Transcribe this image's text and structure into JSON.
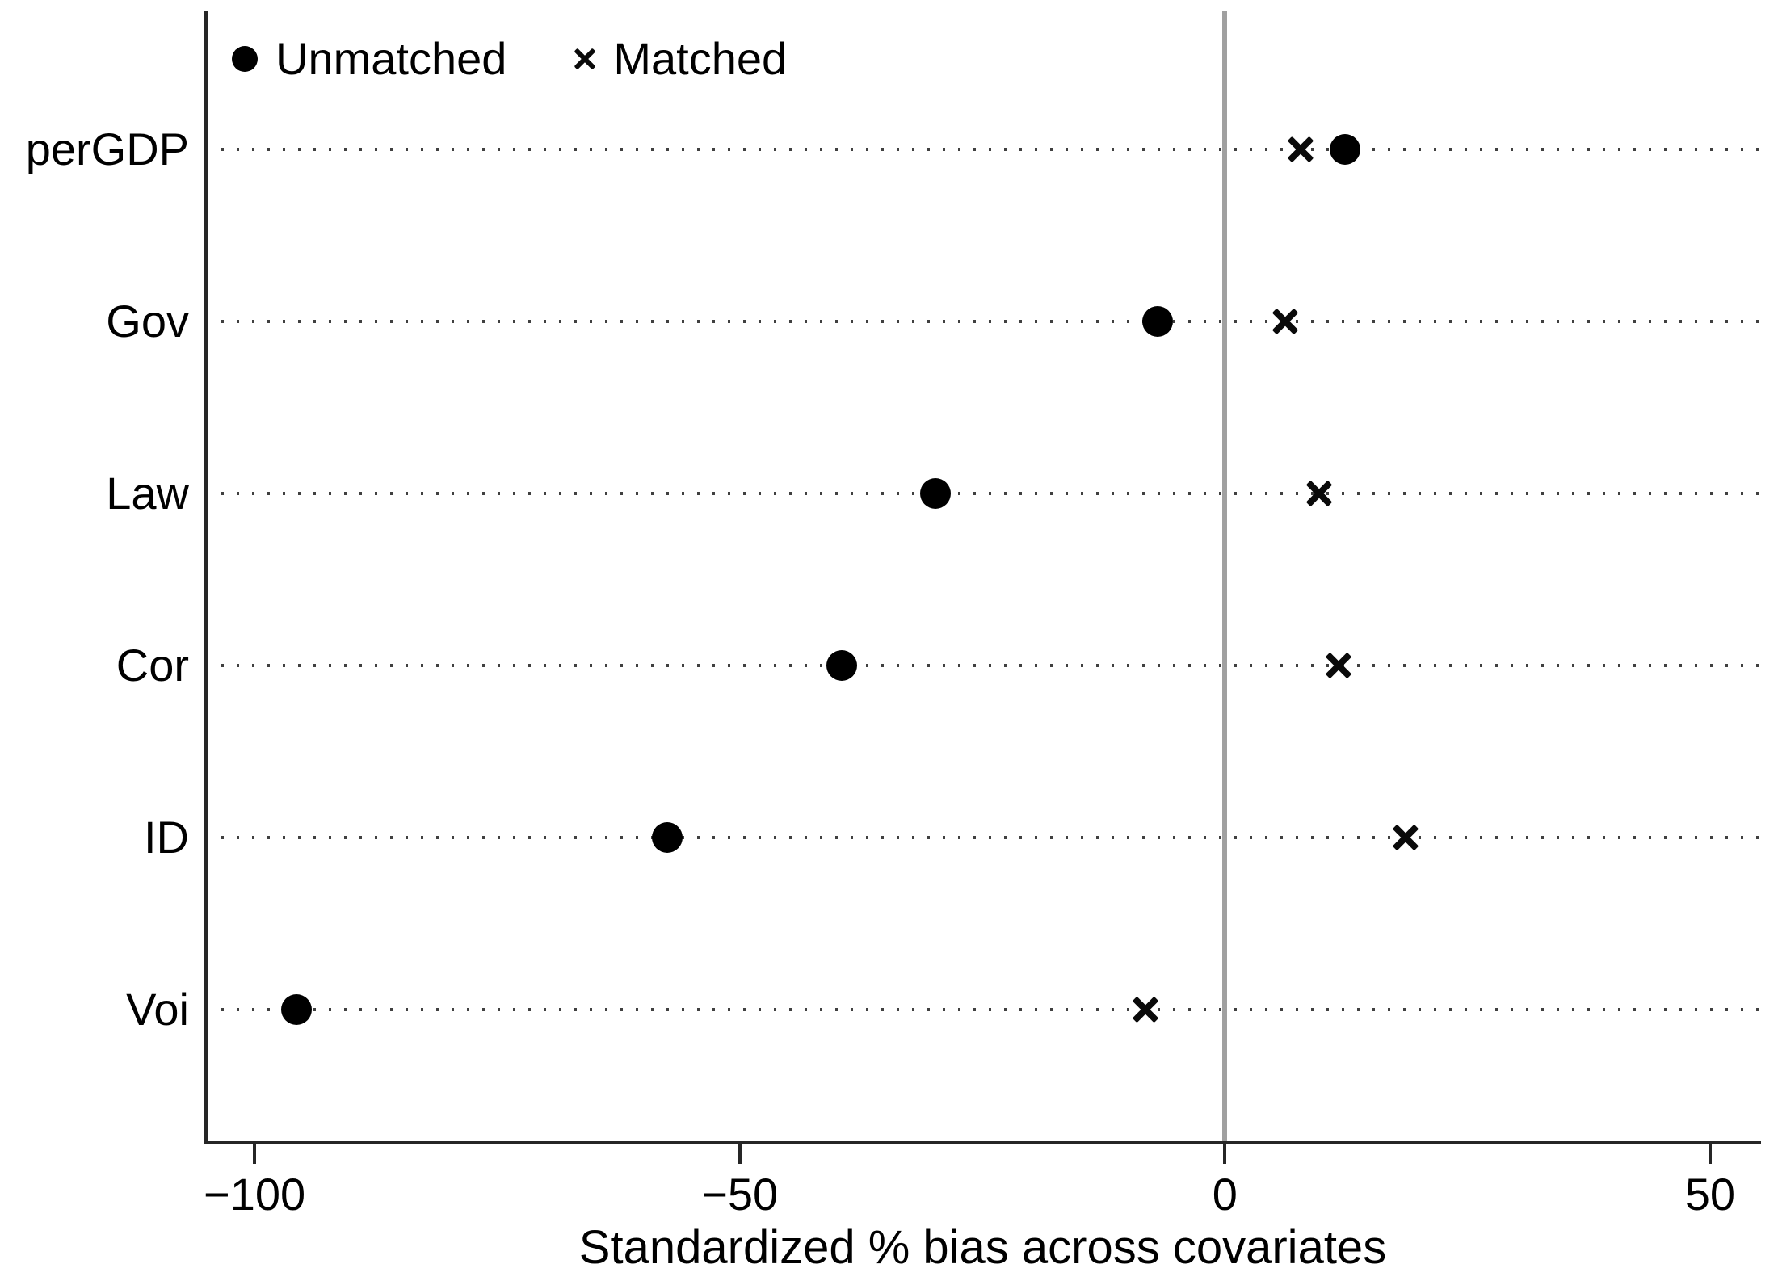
{
  "chart_data": {
    "type": "scatter",
    "variant": "horizontal-dot-plot",
    "title": "",
    "xlabel": "Standardized % bias across covariates",
    "ylabel": "",
    "categories": [
      "perGDP",
      "Gov",
      "Law",
      "Cor",
      "ID",
      "Voi"
    ],
    "series": [
      {
        "name": "Unmatched",
        "marker": "circle",
        "values": [
          12.4,
          -6.9,
          -29.8,
          -39.5,
          -57.5,
          -95.7
        ]
      },
      {
        "name": "Matched",
        "marker": "x",
        "values": [
          7.8,
          6.2,
          9.7,
          11.7,
          18.6,
          -8.2
        ]
      }
    ],
    "xlim": [
      -105,
      55
    ],
    "x_ticks": [
      -100,
      -50,
      0,
      50
    ],
    "x_tick_labels": [
      "−100",
      "−50",
      "0",
      "50"
    ],
    "reference_line_x": 0,
    "grid": "dotted horizontal line per category",
    "legend_position": "top-left-inside",
    "colors": {
      "marker": "#000000",
      "axis": "#262626",
      "reference_line": "#a0a0a0",
      "grid_dots": "#404040",
      "background": "#ffffff",
      "text": "#000000"
    }
  }
}
